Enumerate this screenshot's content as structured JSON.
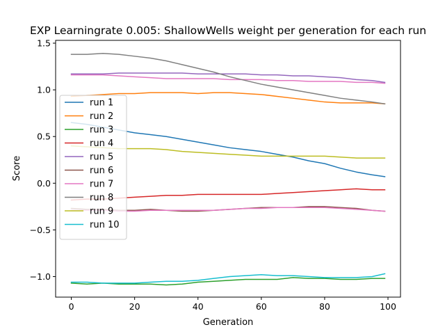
{
  "chart_data": {
    "type": "line",
    "title": "EXP Learningrate 0.005: ShallowWells weight per generation for each run",
    "xlabel": "Generation",
    "ylabel": "Score",
    "xlim": [
      -4.95,
      103.95
    ],
    "ylim": [
      -1.22,
      1.53
    ],
    "xticks": [
      0,
      20,
      40,
      60,
      80,
      100
    ],
    "yticks": [
      -1.0,
      -0.5,
      0.0,
      0.5,
      1.0,
      1.5
    ],
    "xtick_labels": [
      "0",
      "20",
      "40",
      "60",
      "80",
      "100"
    ],
    "ytick_labels": [
      "−1.0",
      "−0.5",
      "0.0",
      "0.5",
      "1.0",
      "1.5"
    ],
    "grid": false,
    "legend_position": "left",
    "x": [
      0,
      5,
      10,
      15,
      20,
      25,
      30,
      35,
      40,
      45,
      50,
      55,
      60,
      65,
      70,
      75,
      80,
      85,
      90,
      95,
      99
    ],
    "series": [
      {
        "name": "run 1",
        "color": "#1f77b4",
        "values": [
          0.65,
          0.63,
          0.6,
          0.57,
          0.54,
          0.52,
          0.5,
          0.47,
          0.44,
          0.41,
          0.38,
          0.36,
          0.34,
          0.31,
          0.28,
          0.24,
          0.21,
          0.16,
          0.12,
          0.09,
          0.07
        ]
      },
      {
        "name": "run 2",
        "color": "#ff7f0e",
        "values": [
          0.93,
          0.94,
          0.95,
          0.96,
          0.96,
          0.97,
          0.97,
          0.97,
          0.96,
          0.97,
          0.97,
          0.96,
          0.95,
          0.93,
          0.91,
          0.89,
          0.87,
          0.86,
          0.86,
          0.86,
          0.85
        ]
      },
      {
        "name": "run 3",
        "color": "#2ca02c",
        "values": [
          -1.07,
          -1.08,
          -1.07,
          -1.08,
          -1.08,
          -1.08,
          -1.09,
          -1.08,
          -1.06,
          -1.05,
          -1.04,
          -1.03,
          -1.03,
          -1.03,
          -1.01,
          -1.02,
          -1.02,
          -1.03,
          -1.03,
          -1.02,
          -1.02
        ]
      },
      {
        "name": "run 4",
        "color": "#d62728",
        "values": [
          -0.18,
          -0.17,
          -0.17,
          -0.16,
          -0.15,
          -0.14,
          -0.13,
          -0.13,
          -0.12,
          -0.12,
          -0.12,
          -0.12,
          -0.12,
          -0.11,
          -0.1,
          -0.09,
          -0.08,
          -0.07,
          -0.06,
          -0.07,
          -0.07
        ]
      },
      {
        "name": "run 5",
        "color": "#9467bd",
        "values": [
          1.17,
          1.17,
          1.17,
          1.18,
          1.18,
          1.18,
          1.18,
          1.18,
          1.17,
          1.17,
          1.17,
          1.17,
          1.16,
          1.16,
          1.15,
          1.15,
          1.14,
          1.13,
          1.11,
          1.1,
          1.08
        ]
      },
      {
        "name": "run 6",
        "color": "#8c564b",
        "values": [
          -0.27,
          -0.28,
          -0.28,
          -0.29,
          -0.29,
          -0.28,
          -0.29,
          -0.3,
          -0.3,
          -0.29,
          -0.28,
          -0.27,
          -0.26,
          -0.26,
          -0.26,
          -0.25,
          -0.25,
          -0.26,
          -0.27,
          -0.29,
          -0.3
        ]
      },
      {
        "name": "run 7",
        "color": "#e377c2",
        "values": [
          -0.29,
          -0.29,
          -0.29,
          -0.3,
          -0.3,
          -0.29,
          -0.29,
          -0.29,
          -0.29,
          -0.29,
          -0.28,
          -0.27,
          -0.27,
          -0.26,
          -0.26,
          -0.26,
          -0.26,
          -0.27,
          -0.28,
          -0.29,
          -0.3
        ]
      },
      {
        "name": "run 8",
        "color": "#7f7f7f",
        "values": [
          1.38,
          1.38,
          1.39,
          1.38,
          1.36,
          1.34,
          1.31,
          1.27,
          1.23,
          1.19,
          1.14,
          1.1,
          1.06,
          1.03,
          1.0,
          0.97,
          0.94,
          0.91,
          0.89,
          0.87,
          0.85
        ]
      },
      {
        "name": "run 9",
        "color": "#bcbd22",
        "values": [
          0.4,
          0.39,
          0.38,
          0.37,
          0.37,
          0.37,
          0.36,
          0.34,
          0.33,
          0.32,
          0.31,
          0.3,
          0.29,
          0.29,
          0.29,
          0.29,
          0.29,
          0.28,
          0.27,
          0.27,
          0.27
        ]
      },
      {
        "name": "run 10",
        "color": "#17becf",
        "values": [
          -1.06,
          -1.06,
          -1.07,
          -1.07,
          -1.07,
          -1.06,
          -1.05,
          -1.05,
          -1.04,
          -1.02,
          -1.0,
          -0.99,
          -0.98,
          -0.99,
          -0.99,
          -1.0,
          -1.01,
          -1.01,
          -1.01,
          -1.0,
          -0.97
        ]
      }
    ],
    "extra_series": [
      {
        "name": "",
        "color": "#e377c2",
        "values": [
          1.16,
          1.16,
          1.16,
          1.15,
          1.14,
          1.13,
          1.12,
          1.12,
          1.12,
          1.12,
          1.11,
          1.11,
          1.11,
          1.1,
          1.1,
          1.09,
          1.09,
          1.09,
          1.08,
          1.08,
          1.07
        ]
      }
    ]
  }
}
